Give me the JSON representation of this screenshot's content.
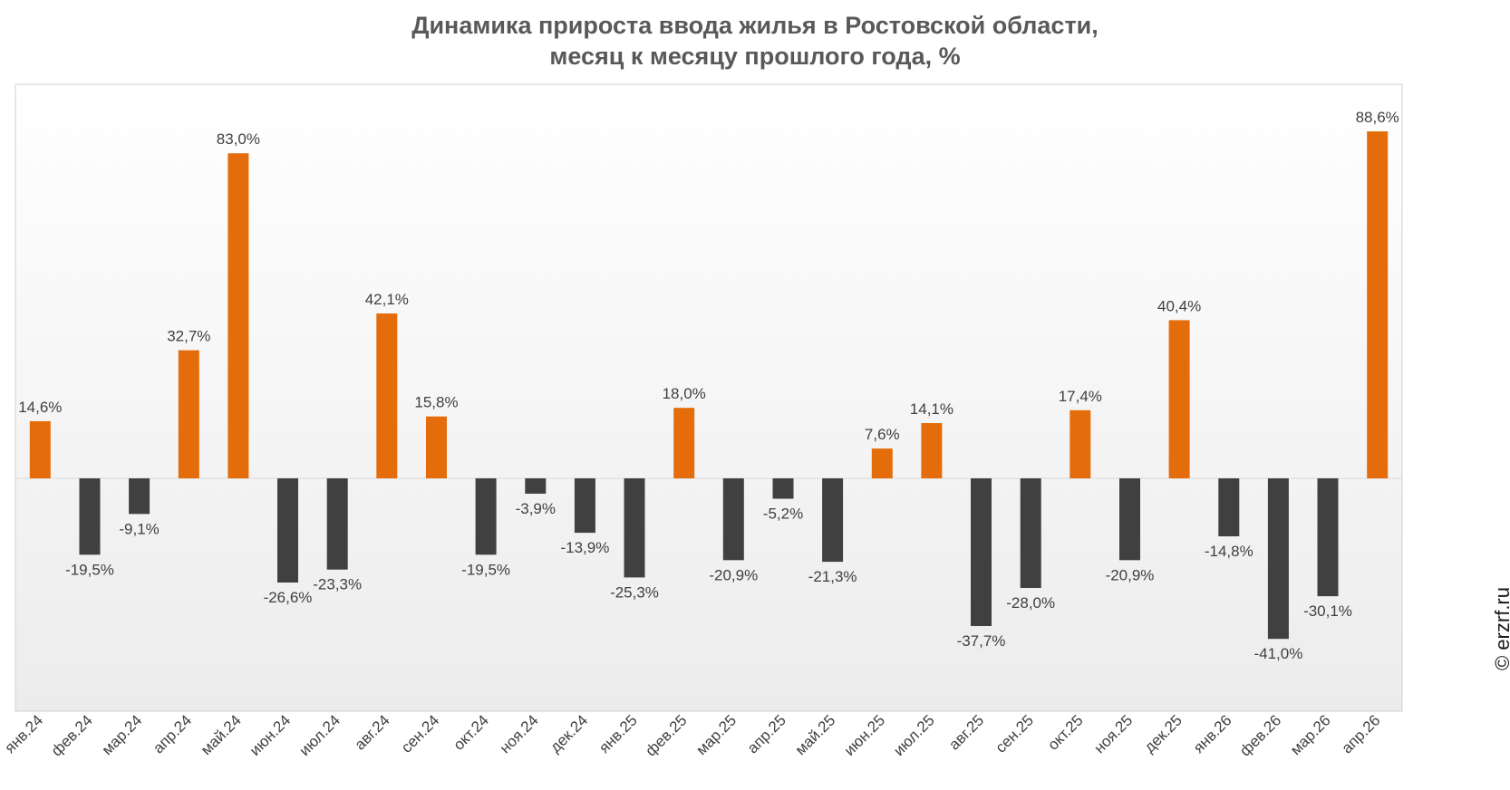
{
  "title_line1": "Динамика прироста ввода жилья в Ростовской области,",
  "title_line2": "месяц к месяцу прошлого года, %",
  "watermark": "© erzrf.ru",
  "colors": {
    "positive": "#E46C0A",
    "negative": "#404040",
    "label": "#404040"
  },
  "chart_data": {
    "type": "bar",
    "title": "Динамика прироста ввода жилья в Ростовской области, месяц к месяцу прошлого года, %",
    "categories": [
      "янв.24",
      "фев.24",
      "мар.24",
      "апр.24",
      "май.24",
      "июн.24",
      "июл.24",
      "авг.24",
      "сен.24",
      "окт.24",
      "ноя.24",
      "дек.24",
      "янв.25",
      "фев.25",
      "мар.25",
      "апр.25",
      "май.25",
      "июн.25",
      "июл.25",
      "авг.25",
      "сен.25",
      "окт.25",
      "ноя.25",
      "дек.25",
      "янв.26",
      "фев.26",
      "мар.26",
      "апр.26"
    ],
    "values": [
      14.6,
      -19.5,
      -9.1,
      32.7,
      83.0,
      -26.6,
      -23.3,
      42.1,
      15.8,
      -19.5,
      -3.9,
      -13.9,
      -25.3,
      18.0,
      -20.9,
      -5.2,
      -21.3,
      7.6,
      14.1,
      -37.7,
      -28.0,
      17.4,
      -20.9,
      40.4,
      -14.8,
      -41.0,
      -30.1,
      88.6
    ],
    "data_labels": [
      "14,6%",
      "-19,5%",
      "-9,1%",
      "32,7%",
      "83,0%",
      "-26,6%",
      "-23,3%",
      "42,1%",
      "15,8%",
      "-19,5%",
      "-3,9%",
      "-13,9%",
      "-25,3%",
      "18,0%",
      "-20,9%",
      "-5,2%",
      "-21,3%",
      "7,6%",
      "14,1%",
      "-37,7%",
      "-28,0%",
      "17,4%",
      "-20,9%",
      "40,4%",
      "-14,8%",
      "-41,0%",
      "-30,1%",
      "88,6%"
    ],
    "xlabel": "",
    "ylabel": "",
    "grid": false,
    "legend": "none"
  }
}
